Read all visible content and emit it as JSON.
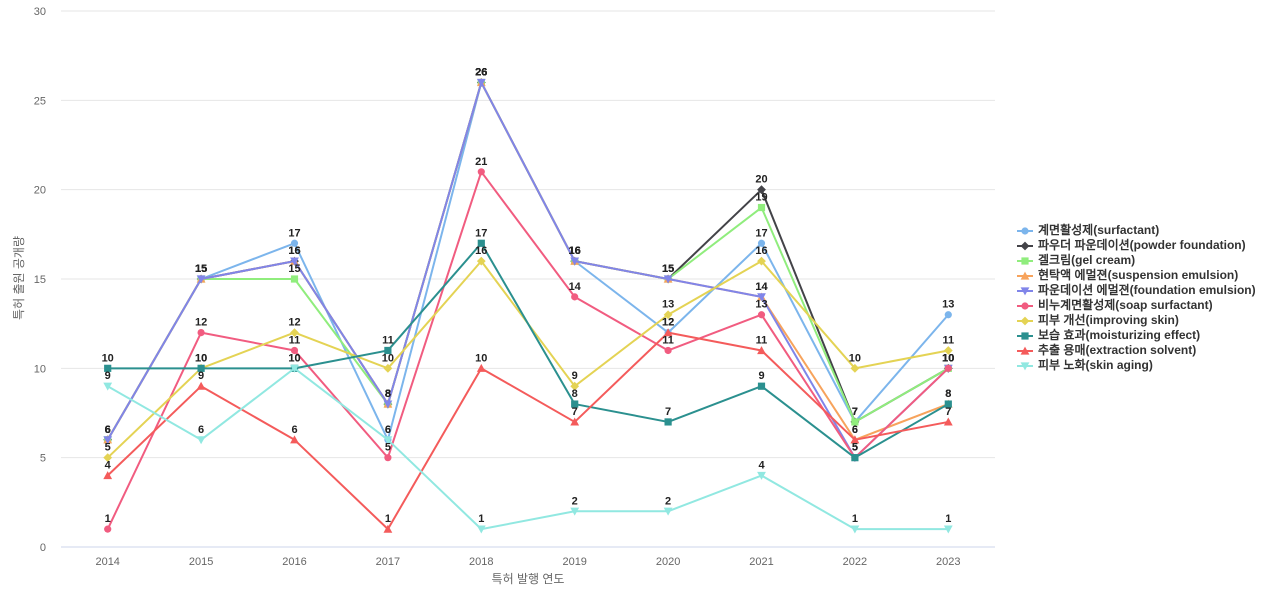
{
  "chart_data": {
    "type": "line",
    "title": "",
    "xlabel": "특허 발행 연도",
    "ylabel": "특허 출원 공개량",
    "ylim": [
      0,
      30
    ],
    "yticks": [
      0,
      5,
      10,
      15,
      20,
      25,
      30
    ],
    "categories": [
      "2014",
      "2015",
      "2016",
      "2017",
      "2018",
      "2019",
      "2020",
      "2021",
      "2022",
      "2023"
    ],
    "legend_position": "right",
    "grid": true,
    "series": [
      {
        "name": "계면활성제(surfactant)",
        "color": "#7cb5ec",
        "marker": "circle",
        "values": [
          6,
          15,
          17,
          6,
          26,
          16,
          12,
          17,
          7,
          13
        ]
      },
      {
        "name": "파우더 파운데이션(powder foundation)",
        "color": "#434348",
        "marker": "diamond",
        "values": [
          6,
          15,
          16,
          8,
          26,
          16,
          15,
          20,
          7,
          10
        ]
      },
      {
        "name": "겔크림(gel cream)",
        "color": "#90ed7d",
        "marker": "square",
        "values": [
          6,
          15,
          15,
          8,
          26,
          16,
          15,
          19,
          7,
          10
        ]
      },
      {
        "name": "현탁액 에멀젼(suspension emulsion)",
        "color": "#f7a35c",
        "marker": "triangle",
        "values": [
          6,
          15,
          16,
          8,
          26,
          16,
          15,
          14,
          6,
          8
        ]
      },
      {
        "name": "파운데이션 에멀젼(foundation emulsion)",
        "color": "#8085e9",
        "marker": "triangle-down",
        "values": [
          6,
          15,
          16,
          8,
          26,
          16,
          15,
          14,
          5,
          10
        ]
      },
      {
        "name": "비누계면활성제(soap surfactant)",
        "color": "#f15c80",
        "marker": "circle",
        "values": [
          1,
          12,
          11,
          5,
          21,
          14,
          11,
          13,
          5,
          10
        ]
      },
      {
        "name": "피부 개선(improving skin)",
        "color": "#e4d354",
        "marker": "diamond",
        "values": [
          5,
          10,
          12,
          10,
          16,
          9,
          13,
          16,
          10,
          11
        ]
      },
      {
        "name": "보습 효과(moisturizing effect)",
        "color": "#2b908f",
        "marker": "square",
        "values": [
          10,
          10,
          10,
          11,
          17,
          8,
          7,
          9,
          5,
          8
        ]
      },
      {
        "name": "추출 용매(extraction solvent)",
        "color": "#f45b5b",
        "marker": "triangle",
        "values": [
          4,
          9,
          6,
          1,
          10,
          7,
          12,
          11,
          6,
          7
        ]
      },
      {
        "name": "피부 노화(skin aging)",
        "color": "#91e8e1",
        "marker": "triangle-down",
        "values": [
          9,
          6,
          10,
          6,
          1,
          2,
          2,
          4,
          1,
          1
        ]
      }
    ]
  }
}
